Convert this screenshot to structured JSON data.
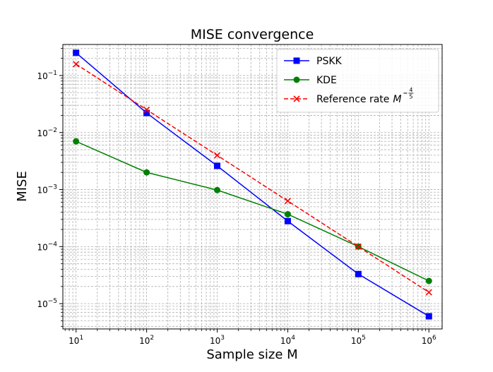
{
  "chart_data": {
    "type": "line",
    "title": "MISE convergence",
    "xlabel": "Sample size M",
    "ylabel": "MISE",
    "xscale": "log",
    "yscale": "log",
    "xlim": [
      6.5,
      1540000
    ],
    "ylim": [
      3.6e-06,
      0.35
    ],
    "grid": "major+minor, dashed",
    "x": [
      10,
      100,
      1000,
      10000,
      100000,
      1000000
    ],
    "x_ticks": [
      {
        "base": "10",
        "exp": "1"
      },
      {
        "base": "10",
        "exp": "2"
      },
      {
        "base": "10",
        "exp": "3"
      },
      {
        "base": "10",
        "exp": "4"
      },
      {
        "base": "10",
        "exp": "5"
      },
      {
        "base": "10",
        "exp": "6"
      }
    ],
    "y_ticks": [
      {
        "base": "10",
        "exp": "−5"
      },
      {
        "base": "10",
        "exp": "−4"
      },
      {
        "base": "10",
        "exp": "−3"
      },
      {
        "base": "10",
        "exp": "−2"
      },
      {
        "base": "10",
        "exp": "−1"
      }
    ],
    "legend_position": "top-right",
    "series": [
      {
        "name": "PSKK",
        "color": "#0000ff",
        "marker": "square",
        "linestyle": "solid",
        "values": [
          0.25,
          0.022,
          0.0026,
          0.00028,
          3.3e-05,
          6e-06
        ]
      },
      {
        "name": "KDE",
        "color": "#008000",
        "marker": "circle",
        "linestyle": "solid",
        "values": [
          0.007,
          0.002,
          0.00098,
          0.00037,
          0.0001,
          2.5e-05
        ]
      },
      {
        "name": "Reference rate",
        "legend_math": {
          "symbol": "M",
          "numerator": "4",
          "denominator": "5"
        },
        "color": "#ff0000",
        "marker": "x",
        "linestyle": "dashed",
        "values": [
          0.158,
          0.0251,
          0.00398,
          0.000631,
          0.0001,
          1.58e-05
        ]
      }
    ]
  }
}
